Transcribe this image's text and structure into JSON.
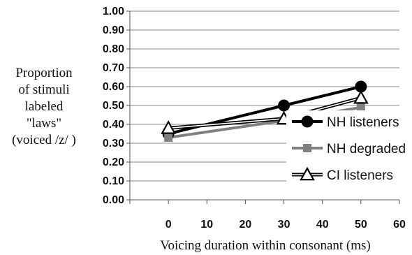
{
  "chart_data": {
    "type": "line",
    "x": [
      0,
      30,
      50
    ],
    "xlim": [
      -10,
      60
    ],
    "xticks": [
      0,
      10,
      20,
      30,
      40,
      50,
      60
    ],
    "xtick_labels": [
      "0",
      "10",
      "20",
      "30",
      "40",
      "50",
      "60"
    ],
    "ylim": [
      0,
      1
    ],
    "yticks": [
      0,
      0.1,
      0.2,
      0.3,
      0.4,
      0.5,
      0.6,
      0.7,
      0.8,
      0.9,
      1.0
    ],
    "ytick_labels": [
      "0.00",
      "0.10",
      "0.20",
      "0.30",
      "0.40",
      "0.50",
      "0.60",
      "0.70",
      "0.80",
      "0.90",
      "1.00"
    ],
    "xlabel": "Voicing duration within consonant (ms)",
    "ylabel_lines": [
      "Proportion",
      "of stimuli",
      "labeled",
      "\"laws\"",
      "(voiced /z/ )"
    ],
    "grid": "horizontal",
    "legend_position": "bottom-right",
    "series": [
      {
        "name": "NH listeners",
        "values": [
          0.35,
          0.5,
          0.6
        ],
        "color": "#000000",
        "marker": "circle"
      },
      {
        "name": "NH degraded",
        "values": [
          0.33,
          0.42,
          0.49
        ],
        "color": "#808080",
        "marker": "square"
      },
      {
        "name": "CI listeners",
        "values": [
          0.38,
          0.43,
          0.54
        ],
        "color": "#000000",
        "marker": "triangle-open"
      }
    ]
  }
}
